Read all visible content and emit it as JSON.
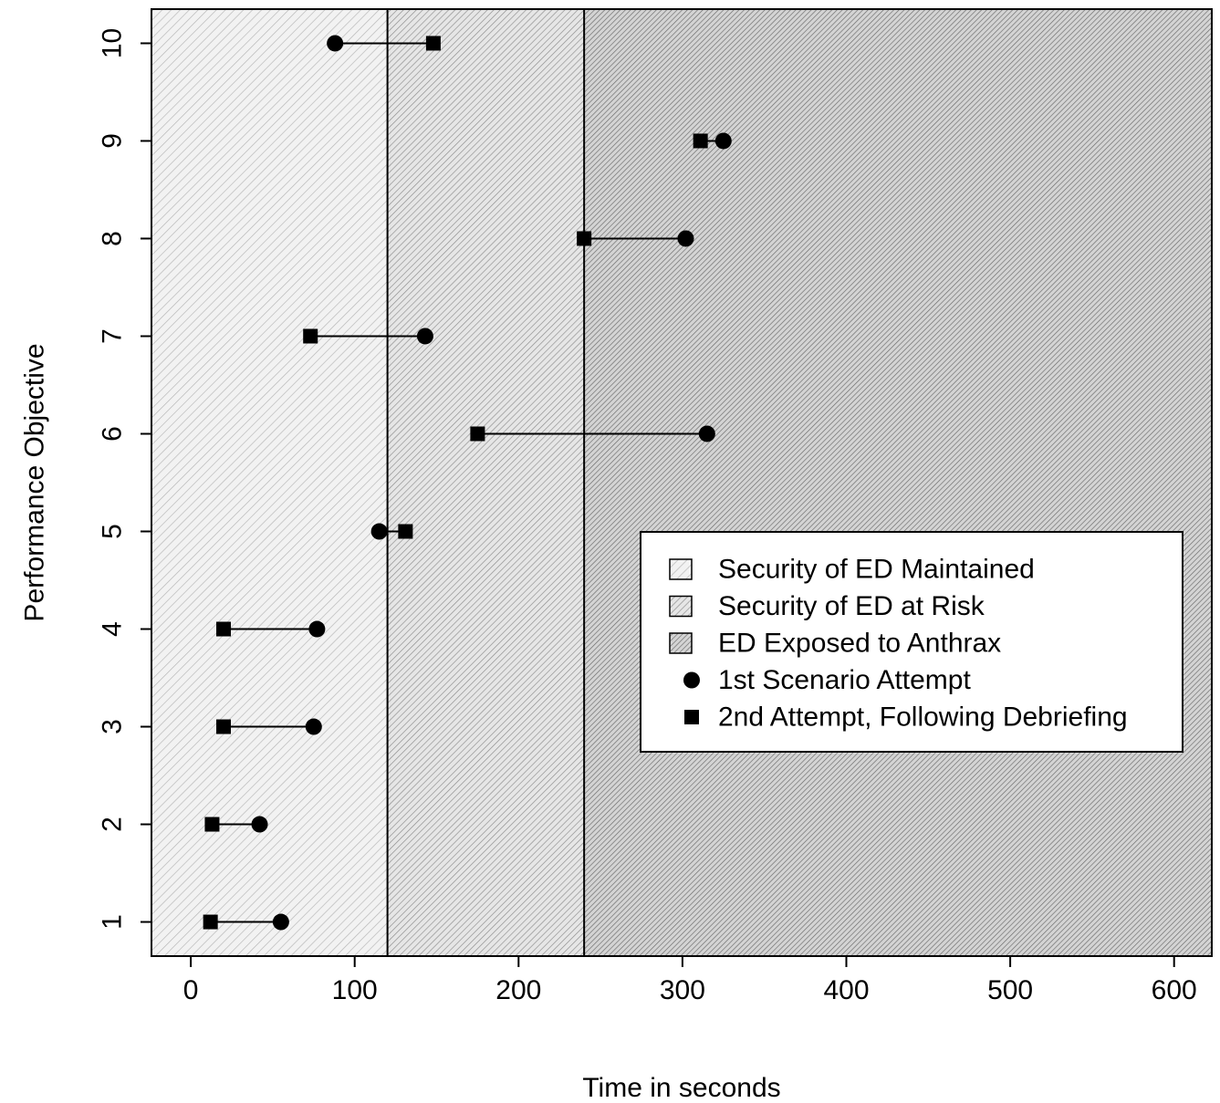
{
  "chart_data": {
    "type": "dumbbell",
    "title": "",
    "xlabel": "Time in seconds",
    "ylabel": "Performance Objective",
    "xlim": [
      -24,
      623
    ],
    "ylim": [
      0.65,
      10.35
    ],
    "xticks": [
      0,
      100,
      200,
      300,
      400,
      500,
      600
    ],
    "xtick_labels": [
      "0",
      "100",
      "200",
      "300",
      "400",
      "500",
      "600"
    ],
    "yticks": [
      1,
      2,
      3,
      4,
      5,
      6,
      7,
      8,
      9,
      10
    ],
    "ytick_labels": [
      "1",
      "2",
      "3",
      "4",
      "5",
      "6",
      "7",
      "8",
      "9",
      "10"
    ],
    "grid": false,
    "legend_position": "center-right",
    "regions": [
      {
        "name": "Security of ED Maintained",
        "x_from": -24,
        "x_to": 120,
        "fill": "#f2f2f2",
        "hatch": "#b5b5b5",
        "hatch_spacing": 7
      },
      {
        "name": "Security of ED at Risk",
        "x_from": 120,
        "x_to": 240,
        "fill": "#e6e6e6",
        "hatch": "#8c8c8c",
        "hatch_spacing": 5
      },
      {
        "name": "ED Exposed to Anthrax",
        "x_from": 240,
        "x_to": 623,
        "fill": "#d4d4d4",
        "hatch": "#6a6a6a",
        "hatch_spacing": 4
      }
    ],
    "series": [
      {
        "name": "1st Scenario Attempt",
        "marker": "circle",
        "x": [
          55,
          42,
          75,
          77,
          115,
          315,
          143,
          302,
          325,
          88
        ],
        "y": [
          1,
          2,
          3,
          4,
          5,
          6,
          7,
          8,
          9,
          10
        ]
      },
      {
        "name": "2nd Attempt, Following Debriefing",
        "marker": "square",
        "x": [
          12,
          13,
          20,
          20,
          131,
          175,
          73,
          240,
          311,
          148
        ],
        "y": [
          1,
          2,
          3,
          4,
          5,
          6,
          7,
          8,
          9,
          10
        ]
      }
    ],
    "legend": [
      {
        "label": "Security of ED Maintained",
        "symbol": "hatch",
        "region": 0
      },
      {
        "label": "Security of ED at Risk",
        "symbol": "hatch",
        "region": 1
      },
      {
        "label": "ED Exposed to Anthrax",
        "symbol": "hatch",
        "region": 2
      },
      {
        "label": "1st Scenario Attempt",
        "symbol": "circle"
      },
      {
        "label": "2nd Attempt, Following Debriefing",
        "symbol": "square"
      }
    ]
  }
}
